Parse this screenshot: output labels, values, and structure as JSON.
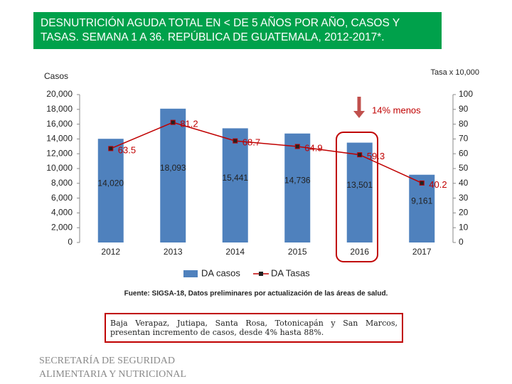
{
  "chart_data": {
    "type": "bar",
    "title": "DESNUTRICIÓN AGUDA TOTAL EN < DE 5 AÑOS POR AÑO, CASOS Y TASAS.  SEMANA 1 A 36. REPÚBLICA DE GUATEMALA,  2012-2017*.",
    "y_label": "Casos",
    "y2_label": "Tasa x 10,000",
    "annotation": "14% menos",
    "source": "Fuente: SIGSA-18, Datos preliminares por actualización de las áreas de salud.",
    "note": "Baja Verapaz, Jutiapa, Santa Rosa, Totonicapán y San Marcos, presentan incremento de casos, desde 4% hasta 88%.",
    "categories": [
      "2012",
      "2013",
      "2014",
      "2015",
      "2016",
      "2017"
    ],
    "series": [
      {
        "name": "DA casos",
        "type": "bar",
        "color": "#4f81bd",
        "values": [
          14020,
          18093,
          15441,
          14736,
          13501,
          9161
        ],
        "value_labels": [
          "14,020",
          "18,093",
          "15,441",
          "14,736",
          "13,501",
          "9,161"
        ]
      },
      {
        "name": "DA Tasas",
        "type": "line",
        "axis": "y2",
        "color": "#c00000",
        "values": [
          63.5,
          81.2,
          68.7,
          64.9,
          59.3,
          40.2
        ]
      }
    ],
    "ylim": [
      0,
      20000
    ],
    "yticks": [
      0,
      {
        "value": 2000,
        "label": "2,000"
      },
      {
        "value": 4000,
        "label": "4,000"
      },
      {
        "value": 6000,
        "label": "6,000"
      },
      {
        "value": 8000,
        "label": "8,000"
      },
      {
        "value": 10000,
        "label": "10,000"
      },
      {
        "value": 12000,
        "label": "12,000"
      },
      {
        "value": 14000,
        "label": "14,000"
      },
      {
        "value": 16000,
        "label": "16,000"
      },
      {
        "value": 18000,
        "label": "18,000"
      },
      {
        "value": 20000,
        "label": "20,000"
      }
    ],
    "y2lim": [
      0,
      100
    ],
    "y2ticks": [
      0,
      10,
      20,
      30,
      40,
      50,
      60,
      70,
      80,
      90,
      100
    ],
    "grid": false
  },
  "footer": [
    "SECRETARÍA DE SEGURIDAD",
    "ALIMENTARIA Y NUTRICIONAL"
  ]
}
